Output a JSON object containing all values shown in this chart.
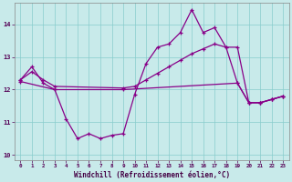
{
  "xlabel": "Windchill (Refroidissement éolien,°C)",
  "bg_color": "#c8eaea",
  "grid_color": "#88cccc",
  "line_color": "#880088",
  "xlim": [
    -0.5,
    23.5
  ],
  "ylim": [
    9.85,
    14.65
  ],
  "yticks": [
    10,
    11,
    12,
    13,
    14
  ],
  "xticks": [
    0,
    1,
    2,
    3,
    4,
    5,
    6,
    7,
    8,
    9,
    10,
    11,
    12,
    13,
    14,
    15,
    16,
    17,
    18,
    19,
    20,
    21,
    22,
    23
  ],
  "s1_x": [
    0,
    1,
    2,
    3,
    4,
    5,
    6,
    7,
    8,
    9,
    10,
    11,
    12,
    13,
    14,
    15,
    16,
    17,
    18,
    19,
    20,
    21,
    22,
    23
  ],
  "s1_y": [
    12.3,
    12.7,
    12.2,
    12.0,
    11.1,
    10.5,
    10.65,
    10.5,
    10.6,
    10.65,
    11.85,
    12.8,
    13.3,
    13.4,
    13.75,
    14.45,
    13.75,
    13.9,
    13.3,
    12.2,
    11.6,
    11.6,
    11.7,
    11.8
  ],
  "s2_x": [
    0,
    1,
    2,
    3,
    9,
    10,
    11,
    12,
    13,
    14,
    15,
    16,
    17,
    18,
    19,
    20,
    21,
    22,
    23
  ],
  "s2_y": [
    12.3,
    12.55,
    12.3,
    12.1,
    12.05,
    12.1,
    12.3,
    12.5,
    12.7,
    12.9,
    13.1,
    13.25,
    13.4,
    13.3,
    13.3,
    11.6,
    11.6,
    11.7,
    11.8
  ],
  "s3_x": [
    0,
    3,
    9,
    19,
    20,
    21,
    22,
    23
  ],
  "s3_y": [
    12.25,
    12.0,
    12.0,
    12.2,
    11.6,
    11.6,
    11.7,
    11.8
  ]
}
